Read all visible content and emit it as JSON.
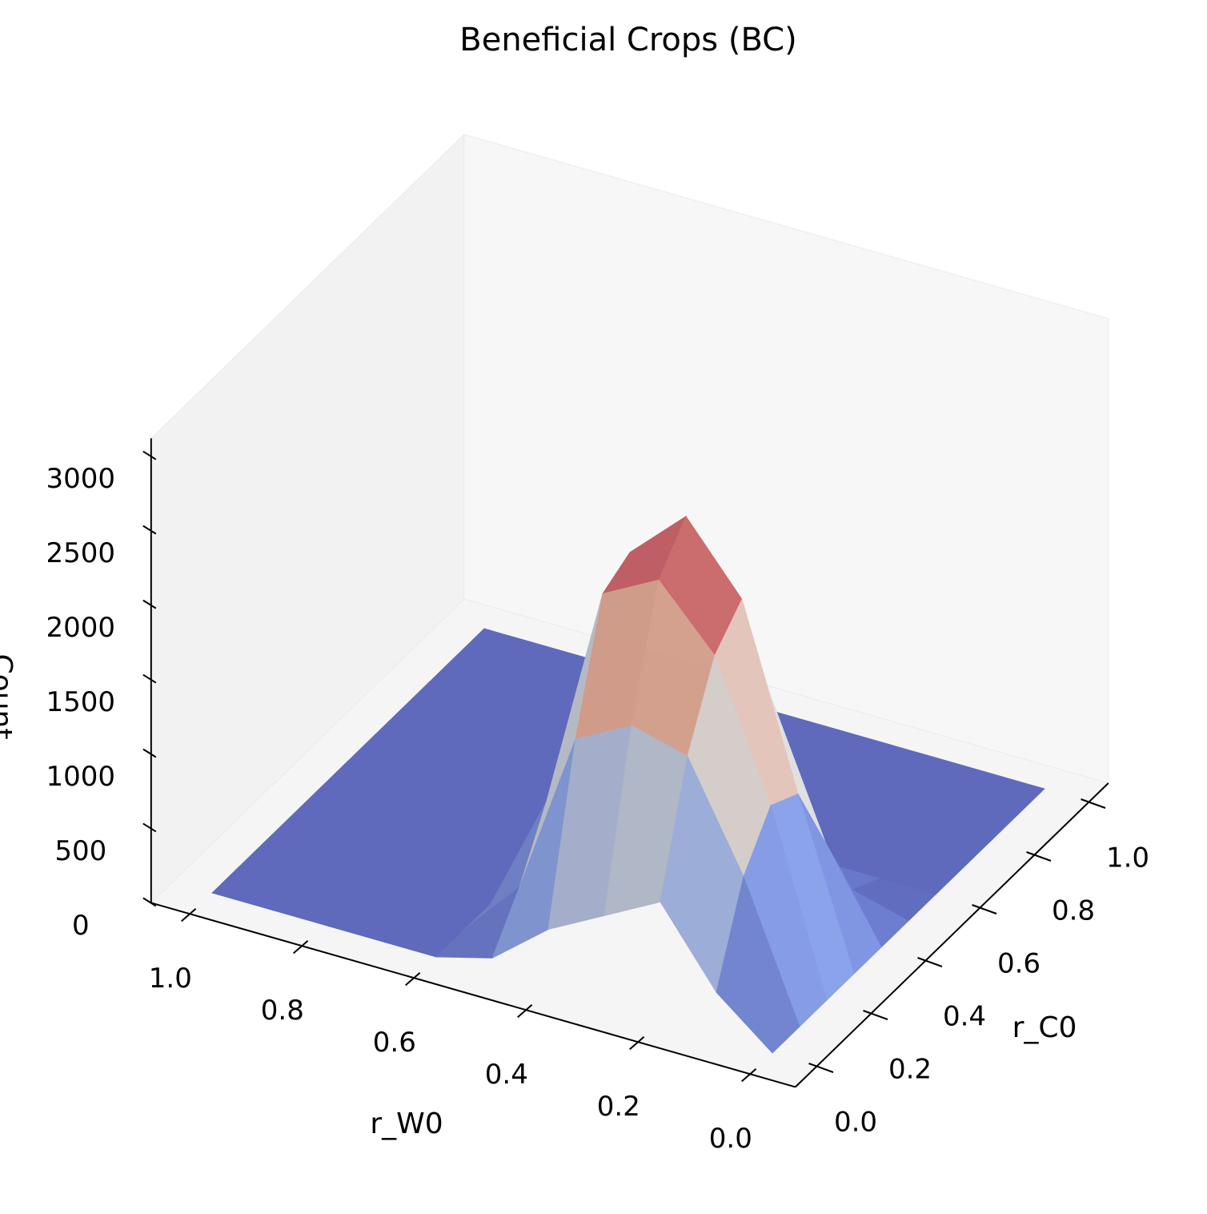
{
  "chart_data": {
    "type": "surface3d",
    "title": "Beneficial Crops (BC)",
    "xlabel": "r_W0",
    "ylabel": "r_C0",
    "zlabel": "Count",
    "x": [
      0,
      0.1,
      0.2,
      0.3,
      0.4,
      0.5,
      0.6,
      0.7,
      0.8,
      0.9,
      1
    ],
    "y": [
      0,
      0.1,
      0.2,
      0.3,
      0.4,
      0.5,
      0.6,
      0.7,
      0.8,
      0.9,
      1
    ],
    "z": [
      [
        0,
        300,
        800,
        600,
        400,
        100,
        0,
        0,
        0,
        0,
        0
      ],
      [
        0,
        900,
        1600,
        1700,
        1500,
        400,
        0,
        0,
        0,
        0,
        0
      ],
      [
        0,
        1200,
        2100,
        2500,
        2300,
        800,
        0,
        0,
        0,
        0,
        0
      ],
      [
        0,
        1100,
        2300,
        2750,
        2400,
        900,
        0,
        0,
        0,
        0,
        0
      ],
      [
        0,
        600,
        1500,
        1800,
        1600,
        500,
        0,
        0,
        0,
        0,
        0
      ],
      [
        0,
        100,
        400,
        500,
        300,
        100,
        0,
        0,
        0,
        0,
        0
      ],
      [
        0,
        0,
        0,
        0,
        0,
        0,
        0,
        0,
        0,
        0,
        0
      ],
      [
        0,
        0,
        0,
        0,
        0,
        0,
        0,
        0,
        0,
        0,
        0
      ],
      [
        0,
        0,
        0,
        0,
        0,
        0,
        0,
        0,
        0,
        0,
        0
      ],
      [
        0,
        0,
        0,
        0,
        0,
        0,
        0,
        0,
        0,
        0,
        0
      ],
      [
        0,
        0,
        0,
        0,
        0,
        0,
        0,
        0,
        0,
        0,
        0
      ]
    ],
    "colormap": "coolwarm",
    "xlim": [
      -0.08,
      1.07
    ],
    "ylim": [
      -0.08,
      1.07
    ],
    "zlim": [
      0,
      3120
    ],
    "xticks": [
      {
        "value": 0,
        "label": "0.0"
      },
      {
        "value": 0.2,
        "label": "0.2"
      },
      {
        "value": 0.4,
        "label": "0.4"
      },
      {
        "value": 0.6,
        "label": "0.6"
      },
      {
        "value": 0.8,
        "label": "0.8"
      },
      {
        "value": 1,
        "label": "1.0"
      }
    ],
    "yticks": [
      {
        "value": 0,
        "label": "0.0"
      },
      {
        "value": 0.2,
        "label": "0.2"
      },
      {
        "value": 0.4,
        "label": "0.4"
      },
      {
        "value": 0.6,
        "label": "0.6"
      },
      {
        "value": 0.8,
        "label": "0.8"
      },
      {
        "value": 1,
        "label": "1.0"
      }
    ],
    "zticks": [
      0,
      500,
      1000,
      1500,
      2000,
      2500,
      3000
    ],
    "grid": false
  }
}
